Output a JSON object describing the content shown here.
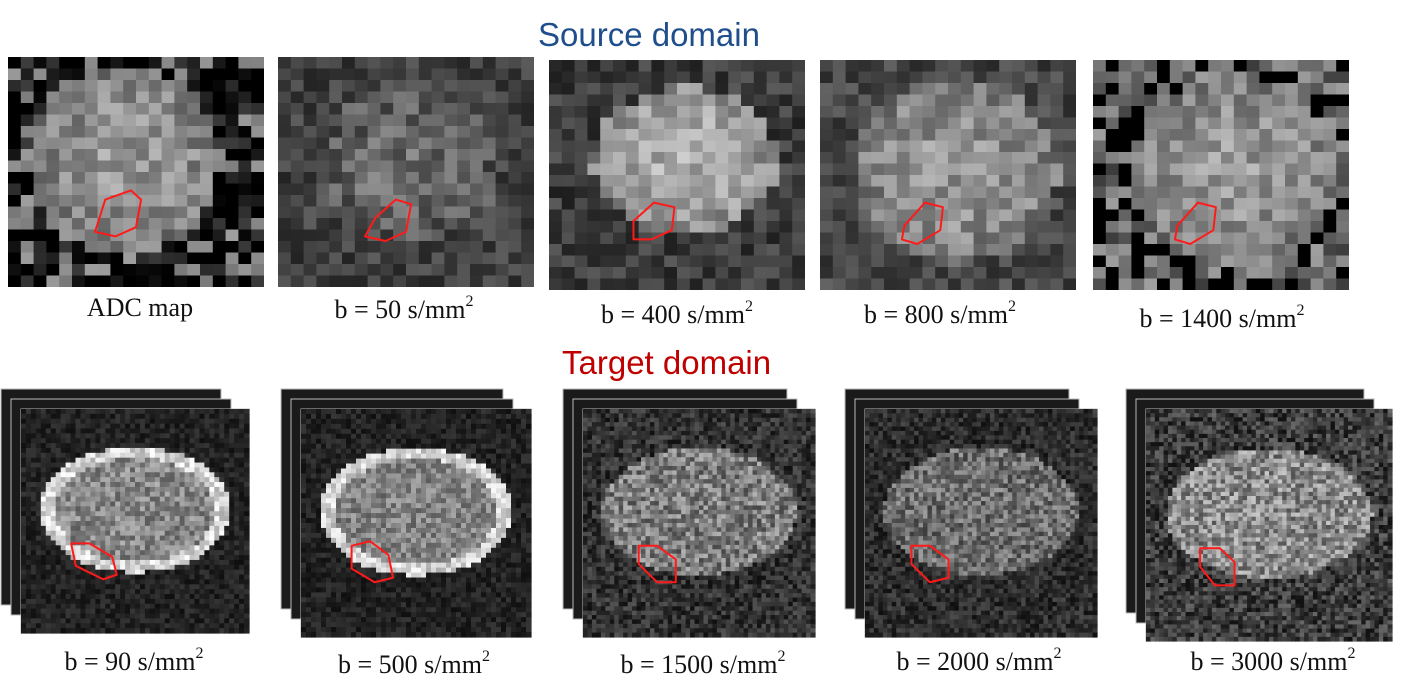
{
  "headings": {
    "source": "Source domain",
    "target": "Target domain"
  },
  "source_panels": [
    {
      "label": "ADC map",
      "exponent": ""
    },
    {
      "label": "b = 50 s/mm",
      "exponent": "2"
    },
    {
      "label": "b = 400 s/mm",
      "exponent": "2"
    },
    {
      "label": "b = 800 s/mm",
      "exponent": "2"
    },
    {
      "label": "b = 1400 s/mm",
      "exponent": "2"
    }
  ],
  "target_panels": [
    {
      "label": "b = 90 s/mm",
      "exponent": "2"
    },
    {
      "label": "b = 500 s/mm",
      "exponent": "2"
    },
    {
      "label": "b = 1500 s/mm",
      "exponent": "2"
    },
    {
      "label": "b = 2000 s/mm",
      "exponent": "2"
    },
    {
      "label": "b = 3000 s/mm",
      "exponent": "2"
    }
  ],
  "colors": {
    "source_heading": "#1f4e8c",
    "target_heading": "#c00000",
    "lesion_outline": "#ff1a1a"
  }
}
